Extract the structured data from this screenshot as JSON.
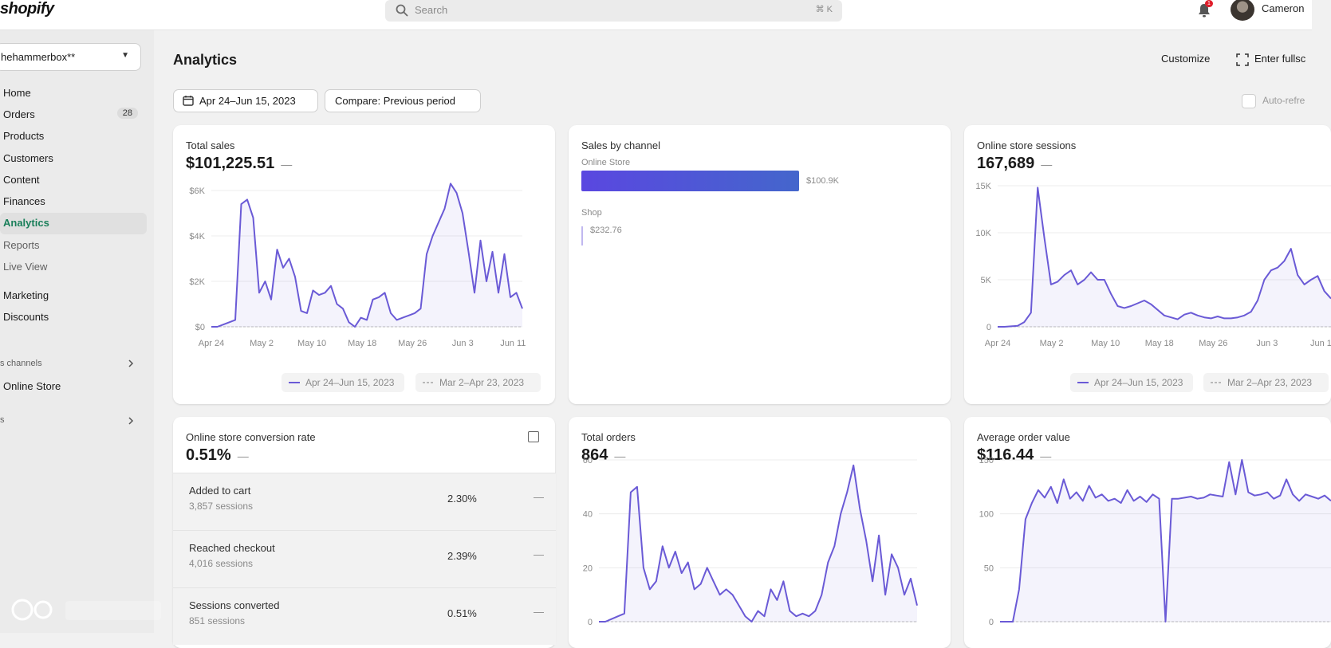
{
  "topbar": {
    "logo": "shopify",
    "search_placeholder": "Search",
    "search_shortcut": "⌘ K",
    "notification_count": "1",
    "user_name": "Cameron"
  },
  "sidebar": {
    "store_name": "hehammerbox**",
    "items": [
      {
        "label": "Home"
      },
      {
        "label": "Orders",
        "count": "28"
      },
      {
        "label": "Products"
      },
      {
        "label": "Customers"
      },
      {
        "label": "Content"
      },
      {
        "label": "Finances"
      },
      {
        "label": "Analytics"
      },
      {
        "label": "Reports"
      },
      {
        "label": "Live View"
      },
      {
        "label": "Marketing"
      },
      {
        "label": "Discounts"
      }
    ],
    "channels_label": "s channels",
    "channel_item": "Online Store",
    "apps_label": "s"
  },
  "header": {
    "title": "Analytics",
    "customize": "Customize",
    "fullscreen": "Enter fullsc",
    "date_range": "Apr 24–Jun 15, 2023",
    "compare": "Compare: Previous period",
    "auto_refresh": "Auto-refre"
  },
  "colors": {
    "series": "#6a5ad6",
    "active_nav": "#1a7f5a",
    "channel_bar": "#5a47e0"
  },
  "cards": {
    "total_sales": {
      "title": "Total sales",
      "value": "$101,225.51",
      "dash": "—",
      "legend_current": "Apr 24–Jun 15, 2023",
      "legend_previous": "Mar 2–Apr 23, 2023"
    },
    "sales_by_channel": {
      "title": "Sales by channel",
      "channels": [
        {
          "name": "Online Store",
          "value": "$100.9K"
        },
        {
          "name": "Shop",
          "value": "$232.76"
        }
      ]
    },
    "sessions": {
      "title": "Online store sessions",
      "value": "167,689",
      "dash": "—",
      "legend_current": "Apr 24–Jun 15, 2023",
      "legend_previous": "Mar 2–Apr 23, 2023"
    },
    "conversion": {
      "title": "Online store conversion rate",
      "value": "0.51%",
      "dash": "—",
      "rows": [
        {
          "label": "Added to cart",
          "sub": "3,857 sessions",
          "pct": "2.30%",
          "dash": "—"
        },
        {
          "label": "Reached checkout",
          "sub": "4,016 sessions",
          "pct": "2.39%",
          "dash": "—"
        },
        {
          "label": "Sessions converted",
          "sub": "851 sessions",
          "pct": "0.51%",
          "dash": "—"
        }
      ]
    },
    "orders": {
      "title": "Total orders",
      "value": "864",
      "dash": "—"
    },
    "aov": {
      "title": "Average order value",
      "value": "$116.44",
      "dash": "—"
    }
  },
  "chart_data": [
    {
      "type": "line",
      "title": "Total sales",
      "x_ticks": [
        "Apr 24",
        "May 2",
        "May 10",
        "May 18",
        "May 26",
        "Jun 3",
        "Jun 11"
      ],
      "y_ticks": [
        "$6K",
        "$4K",
        "$2K",
        "$0"
      ],
      "ylim": [
        0,
        6000
      ],
      "series": [
        {
          "name": "Apr 24–Jun 15, 2023",
          "values": [
            0,
            0,
            100,
            200,
            300,
            5400,
            5600,
            4800,
            1500,
            2000,
            1200,
            3400,
            2600,
            3000,
            2200,
            700,
            600,
            1600,
            1400,
            1500,
            1800,
            1000,
            800,
            200,
            0,
            400,
            300,
            1200,
            1300,
            1500,
            600,
            300,
            400,
            500,
            600,
            800,
            3200,
            4000,
            4600,
            5200,
            6300,
            5900,
            5000,
            3300,
            1500,
            3800,
            2000,
            3300,
            1500,
            3200,
            1300,
            1500,
            800
          ]
        }
      ]
    },
    {
      "type": "bar",
      "title": "Sales by channel",
      "categories": [
        "Online Store",
        "Shop"
      ],
      "values": [
        100900,
        232.76
      ]
    },
    {
      "type": "line",
      "title": "Online store sessions",
      "x_ticks": [
        "Apr 24",
        "May 2",
        "May 10",
        "May 18",
        "May 26",
        "Jun 3",
        "Jun 1"
      ],
      "y_ticks": [
        "15K",
        "10K",
        "5K",
        "0"
      ],
      "ylim": [
        0,
        15000
      ],
      "series": [
        {
          "name": "Apr 24–Jun 15, 2023",
          "values": [
            0,
            0,
            50,
            100,
            500,
            1500,
            14800,
            9500,
            4500,
            4800,
            5500,
            6000,
            4500,
            5000,
            5800,
            5000,
            5000,
            3500,
            2200,
            2000,
            2200,
            2500,
            2800,
            2400,
            1800,
            1200,
            1000,
            800,
            1300,
            1500,
            1200,
            1000,
            900,
            1100,
            900,
            900,
            1000,
            1200,
            1600,
            2800,
            5000,
            6000,
            6300,
            7000,
            8300,
            5500,
            4500,
            5000,
            5400,
            3800,
            3000
          ]
        }
      ]
    },
    {
      "type": "line",
      "title": "Total orders",
      "y_ticks": [
        "60",
        "40",
        "20",
        "0"
      ],
      "ylim": [
        0,
        60
      ],
      "series": [
        {
          "name": "Apr 24–Jun 15, 2023",
          "values": [
            0,
            0,
            1,
            2,
            3,
            48,
            50,
            20,
            12,
            15,
            28,
            20,
            26,
            18,
            22,
            12,
            14,
            20,
            15,
            10,
            12,
            10,
            6,
            2,
            0,
            4,
            2,
            12,
            8,
            15,
            4,
            2,
            3,
            2,
            4,
            10,
            22,
            28,
            40,
            48,
            58,
            42,
            30,
            15,
            32,
            10,
            25,
            20,
            10,
            16,
            6
          ]
        }
      ]
    },
    {
      "type": "line",
      "title": "Average order value",
      "y_ticks": [
        "150",
        "100",
        "50",
        "0"
      ],
      "ylim": [
        0,
        150
      ],
      "series": [
        {
          "name": "Apr 24–Jun 15, 2023",
          "values": [
            0,
            0,
            0,
            30,
            95,
            110,
            122,
            115,
            125,
            110,
            132,
            114,
            120,
            112,
            126,
            115,
            118,
            112,
            114,
            110,
            122,
            112,
            116,
            111,
            118,
            114,
            0,
            114,
            114,
            115,
            116,
            114,
            115,
            118,
            117,
            116,
            148,
            118,
            150,
            120,
            117,
            118,
            120,
            114,
            117,
            132,
            118,
            112,
            118,
            116,
            114,
            117,
            112
          ]
        }
      ]
    }
  ]
}
